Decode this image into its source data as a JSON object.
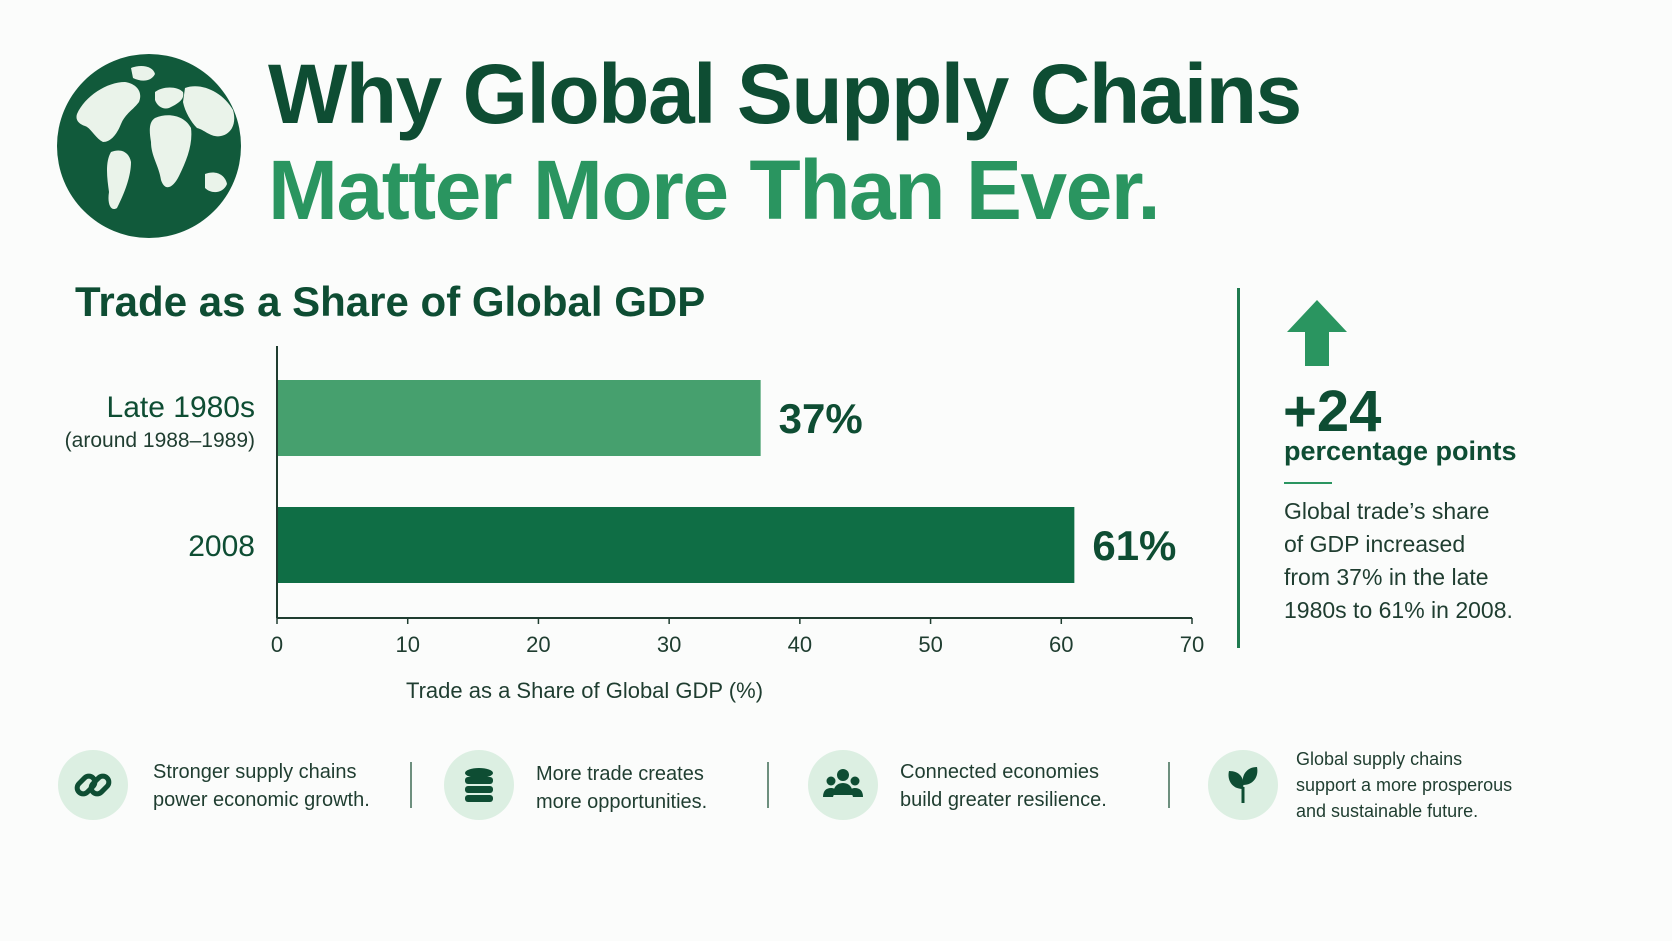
{
  "header": {
    "title_line1": "Why Global Supply Chains",
    "title_line2": "Matter More Than Ever."
  },
  "chart_data": {
    "type": "bar",
    "orientation": "horizontal",
    "title": "Trade as a Share of Global GDP",
    "xlabel": "Trade as a Share of Global GDP (%)",
    "ylabel": "",
    "xlim": [
      0,
      70
    ],
    "ticks": [
      0,
      10,
      20,
      30,
      40,
      50,
      60,
      70
    ],
    "categories": [
      {
        "label": "Late 1980s",
        "sublabel": "(around 1988–1989)"
      },
      {
        "label": "2008",
        "sublabel": ""
      }
    ],
    "values": [
      37,
      61
    ],
    "value_labels": [
      "37%",
      "61%"
    ],
    "bar_colors": [
      "#46a06e",
      "#0f6e45"
    ],
    "grid": false
  },
  "callout": {
    "value": "+24",
    "unit": "percentage points",
    "description_lines": [
      "Global trade’s share",
      "of GDP increased",
      "from 37% in the late",
      "1980s to 61% in 2008."
    ]
  },
  "features": [
    {
      "icon": "chain-link-icon",
      "lines": [
        "Stronger supply chains",
        "power economic growth."
      ]
    },
    {
      "icon": "coin-stack-icon",
      "lines": [
        "More trade creates",
        "more opportunities."
      ]
    },
    {
      "icon": "people-group-icon",
      "lines": [
        "Connected economies",
        "build greater resilience."
      ]
    },
    {
      "icon": "sprout-leaf-icon",
      "lines": [
        "Global supply chains",
        "support a more prosperous",
        "and sustainable future."
      ]
    }
  ],
  "colors": {
    "dark_green": "#0e4d33",
    "accent_green": "#2a9560",
    "light_green": "#dcefe2"
  }
}
